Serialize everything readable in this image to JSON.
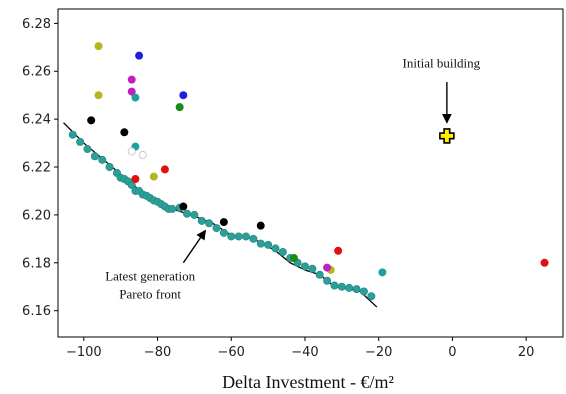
{
  "chart_data": {
    "type": "scatter",
    "title": "",
    "xlabel": "Delta Investment - €/m²",
    "ylabel": "",
    "xlim": [
      -107,
      30
    ],
    "ylim": [
      6.149,
      6.286
    ],
    "xticks": [
      -100,
      -80,
      -60,
      -40,
      -20,
      0,
      20
    ],
    "xtick_labels": [
      "−100",
      "−80",
      "−60",
      "−40",
      "−20",
      "0",
      "20"
    ],
    "yticks": [
      6.16,
      6.18,
      6.2,
      6.22,
      6.24,
      6.26,
      6.28
    ],
    "ytick_labels": [
      "6.16",
      "6.18",
      "6.20",
      "6.22",
      "6.24",
      "6.26",
      "6.28"
    ],
    "grid": false,
    "legend": "none",
    "pareto_line": {
      "color": "#000000",
      "x": [
        -105.5,
        -100,
        -95,
        -90,
        -85,
        -80,
        -75,
        -70,
        -65,
        -60,
        -55,
        -52,
        -48,
        -44,
        -40,
        -36,
        -32,
        -28,
        -25,
        -20.5
      ],
      "y": [
        6.2385,
        6.23,
        6.2235,
        6.217,
        6.2105,
        6.205,
        6.202,
        6.1995,
        6.1965,
        6.1915,
        6.1905,
        6.1885,
        6.185,
        6.18,
        6.177,
        6.175,
        6.17,
        6.169,
        6.168,
        6.1615
      ]
    },
    "series": [
      {
        "marker_color": "#2aa198",
        "edge_color": "#2a8a88",
        "points": [
          [
            -103,
            6.2335
          ],
          [
            -101,
            6.2305
          ],
          [
            -99,
            6.2275
          ],
          [
            -97,
            6.2245
          ],
          [
            -95,
            6.223
          ],
          [
            -93,
            6.22
          ],
          [
            -91,
            6.2175
          ],
          [
            -90,
            6.2155
          ],
          [
            -89,
            6.215
          ],
          [
            -88,
            6.214
          ],
          [
            -87,
            6.2125
          ],
          [
            -86,
            6.21
          ],
          [
            -85,
            6.21
          ],
          [
            -84,
            6.2085
          ],
          [
            -83,
            6.208
          ],
          [
            -82,
            6.207
          ],
          [
            -81,
            6.206
          ],
          [
            -80,
            6.2055
          ],
          [
            -79,
            6.2045
          ],
          [
            -78,
            6.2035
          ],
          [
            -77,
            6.2025
          ],
          [
            -76,
            6.2025
          ],
          [
            -74,
            6.203
          ],
          [
            -72,
            6.2005
          ],
          [
            -70,
            6.2
          ],
          [
            -68,
            6.1975
          ],
          [
            -66,
            6.1965
          ],
          [
            -64,
            6.1945
          ],
          [
            -62,
            6.1925
          ],
          [
            -60,
            6.191
          ],
          [
            -58,
            6.191
          ],
          [
            -56,
            6.191
          ],
          [
            -54,
            6.19
          ],
          [
            -52,
            6.188
          ],
          [
            -50,
            6.1875
          ],
          [
            -48,
            6.186
          ],
          [
            -46,
            6.1845
          ],
          [
            -44,
            6.182
          ],
          [
            -42,
            6.18
          ],
          [
            -40,
            6.1785
          ],
          [
            -38,
            6.1775
          ],
          [
            -36,
            6.175
          ],
          [
            -34,
            6.1725
          ],
          [
            -32,
            6.1705
          ],
          [
            -30,
            6.17
          ],
          [
            -28,
            6.1695
          ],
          [
            -26,
            6.169
          ],
          [
            -24,
            6.168
          ],
          [
            -22,
            6.166
          ]
        ]
      },
      {
        "marker_color": "#000000",
        "points": [
          [
            -98,
            6.2395
          ],
          [
            -89,
            6.2345
          ],
          [
            -73,
            6.2035
          ],
          [
            -62,
            6.197
          ],
          [
            -52,
            6.1955
          ]
        ]
      },
      {
        "marker_color": "#b5b520",
        "points": [
          [
            -96,
            6.2705
          ],
          [
            -96,
            6.25
          ],
          [
            -74,
            6.245
          ],
          [
            -81,
            6.216
          ],
          [
            -33,
            6.177
          ]
        ]
      },
      {
        "marker_color": "#c020c0",
        "points": [
          [
            -87,
            6.2565
          ],
          [
            -87,
            6.2515
          ],
          [
            -34,
            6.178
          ]
        ]
      },
      {
        "marker_color": "#1f1fe0",
        "points": [
          [
            -85,
            6.2665
          ],
          [
            -73,
            6.25
          ]
        ]
      },
      {
        "marker_color": "#1fa0a0",
        "points": [
          [
            -86,
            6.249
          ],
          [
            -86,
            6.2285
          ],
          [
            -19,
            6.176
          ]
        ]
      },
      {
        "marker_color": "#1a8a1a",
        "points": [
          [
            -74,
            6.245
          ],
          [
            -43,
            6.182
          ]
        ]
      },
      {
        "marker_color": "#e01010",
        "points": [
          [
            -86,
            6.215
          ],
          [
            -78,
            6.219
          ],
          [
            -31,
            6.185
          ],
          [
            25,
            6.18
          ]
        ]
      },
      {
        "marker_color": "#ffffff",
        "edge_color": "#c0c0c0",
        "points": [
          [
            -87,
            6.2265
          ],
          [
            -84,
            6.225
          ]
        ]
      }
    ],
    "initial_point": {
      "x": -1.5,
      "y": 6.233,
      "color": "#ffee00",
      "edge_color": "#000000"
    },
    "annotations": [
      {
        "text": "Initial building",
        "x": -3,
        "y": 6.2615,
        "lines": [
          "Initial building"
        ]
      },
      {
        "text": "Latest generation Pareto front",
        "x": -82,
        "y": 6.1725,
        "lines": [
          "Latest generation",
          "Pareto front"
        ]
      }
    ],
    "arrows": [
      {
        "from": [
          -1.5,
          6.2555
        ],
        "to": [
          -1.5,
          6.2385
        ]
      },
      {
        "from": [
          -73,
          6.18
        ],
        "to": [
          -67,
          6.1935
        ]
      }
    ]
  }
}
